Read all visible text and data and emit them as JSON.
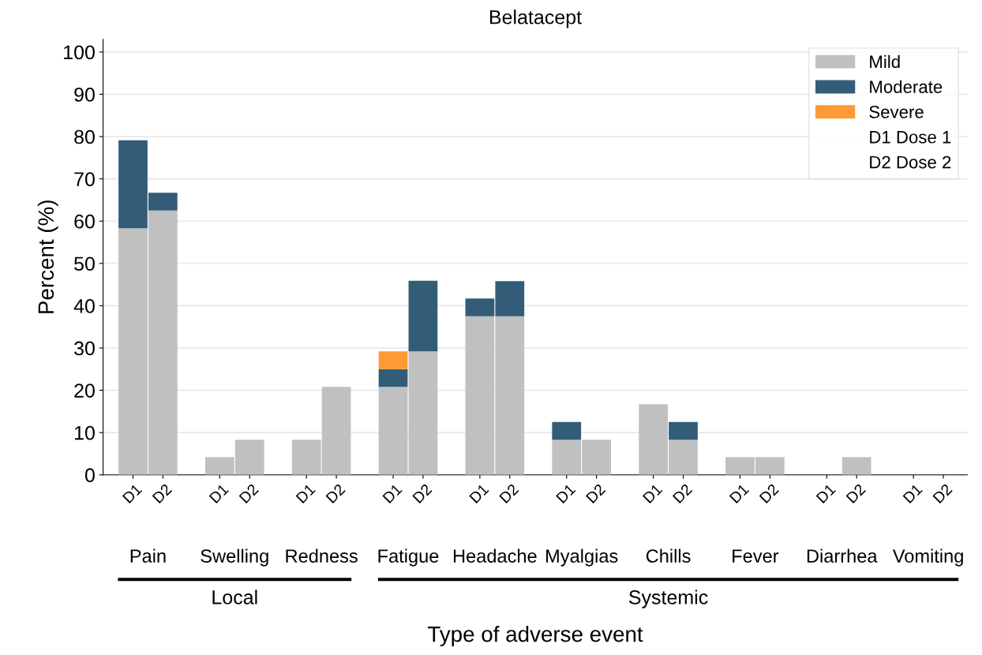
{
  "chart_data": {
    "type": "bar",
    "title": "Belatacept",
    "ylabel": "Percent (%)",
    "categories": [
      "D1",
      "D2",
      "D1",
      "D2",
      "D1",
      "D2",
      "D1",
      "D2",
      "D1",
      "D2",
      "D1",
      "D2",
      "D1",
      "D2",
      "D1",
      "D2",
      "D1",
      "D2",
      "D1",
      "D2"
    ],
    "stacked": true,
    "series": [
      {
        "name": "Mild",
        "color": "#c0c0c0",
        "values": [
          58.3,
          62.5,
          4.2,
          8.3,
          8.3,
          20.8,
          20.8,
          29.2,
          37.5,
          37.5,
          8.3,
          8.3,
          16.7,
          8.3,
          4.2,
          4.2,
          0,
          4.2,
          0,
          0
        ]
      },
      {
        "name": "Moderate",
        "color": "#335c78",
        "values": [
          20.8,
          4.2,
          0,
          0,
          0,
          0,
          4.2,
          16.7,
          4.2,
          8.3,
          4.2,
          0,
          0,
          4.2,
          0,
          0,
          0,
          0,
          0,
          0
        ]
      },
      {
        "name": "Severe",
        "color": "#fd9a35",
        "values": [
          0,
          0,
          0,
          0,
          0,
          0,
          4.2,
          0,
          0,
          0,
          0,
          0,
          0,
          0,
          0,
          0,
          0,
          0,
          0,
          0
        ]
      }
    ],
    "ylim": [
      0,
      103
    ],
    "yticks": [
      0,
      10,
      20,
      30,
      40,
      50,
      60,
      70,
      80,
      90,
      100
    ],
    "grid": "y",
    "legend": "top right",
    "annotations": [
      "Pain",
      "Swelling",
      "Redness",
      "Fatigue",
      "Headache",
      "Myalgias",
      "Chills",
      "Fever",
      "Diarrhea",
      "Vomiting",
      "Local",
      "Systemic",
      "Type of adverse event",
      "D1 Dose 1",
      "D2 Dose 2"
    ]
  }
}
